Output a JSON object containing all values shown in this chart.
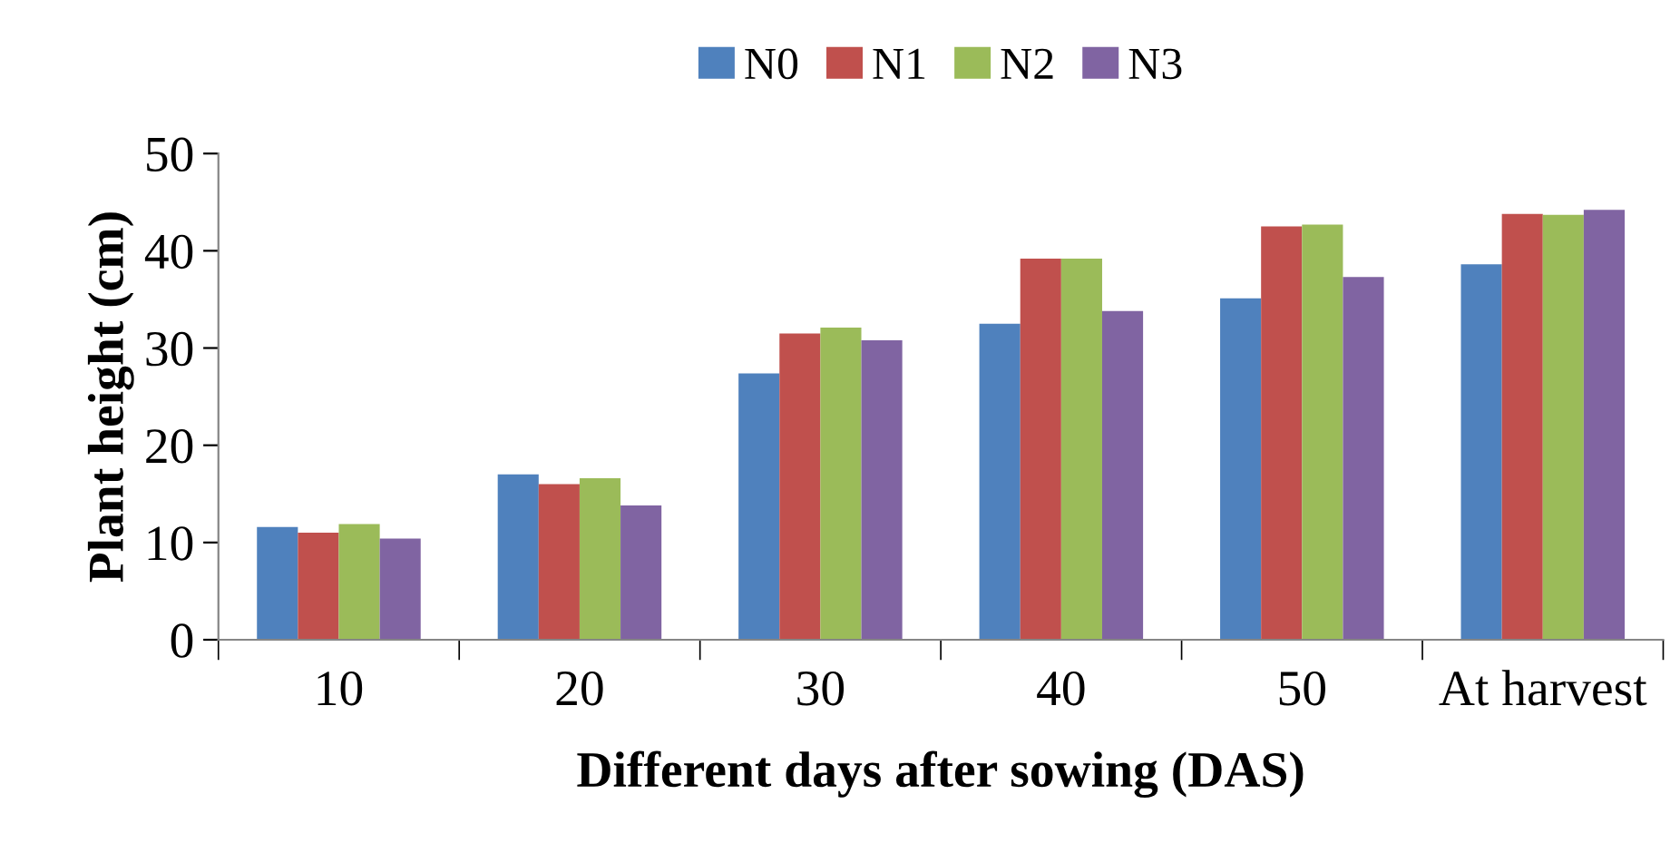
{
  "chart_data": {
    "type": "bar",
    "xlabel": "Different days after sowing (DAS)",
    "ylabel": "Plant height (cm)",
    "categories": [
      "10",
      "20",
      "30",
      "40",
      "50",
      "At harvest"
    ],
    "series": [
      {
        "name": "N0",
        "color": "#4f81bd",
        "values": [
          11.6,
          17.0,
          27.4,
          32.5,
          35.1,
          38.6
        ]
      },
      {
        "name": "N1",
        "color": "#c0504d",
        "values": [
          11.0,
          16.0,
          31.5,
          39.2,
          42.5,
          43.8
        ]
      },
      {
        "name": "N2",
        "color": "#9bbb59",
        "values": [
          11.9,
          16.6,
          32.1,
          39.2,
          42.7,
          43.7
        ]
      },
      {
        "name": "N3",
        "color": "#8064a2",
        "values": [
          10.4,
          13.8,
          30.8,
          33.8,
          37.3,
          44.2
        ]
      }
    ],
    "ylim": [
      0,
      50
    ],
    "yticks": [
      0,
      10,
      20,
      30,
      40,
      50
    ],
    "grid": false,
    "legend": "top"
  }
}
